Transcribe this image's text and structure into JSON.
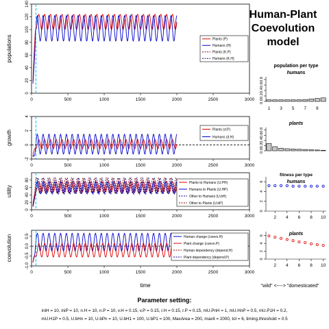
{
  "page": {
    "title_lines": [
      "Human-Plant",
      "Coevolution",
      "model"
    ],
    "x_axis_label": "time",
    "right_bottom_label": "\"wild\" <----> \"domesticated\""
  },
  "parameters": {
    "heading": "Parameter setting:",
    "line1": "iniH = 10, iniP = 10, n.H = 10, n.P = 10, v.H = 0.15, v.P = 0.15, r.H = 0.15, r.P = 0.15, mU.PnH = 1, mU.HnP = 0.5, mU.P1H = 0.2,",
    "line2": "mU.H1P = 0.5, U.bHn = 10, U.bPn = 10, U.bH1 = 100, U.bP1 = 100, MaxArea = 200, maxIt = 2000, tol = 6, timing.threshold = 0.5"
  },
  "colors": {
    "plants": "#dd0000",
    "humans": "#0000cc",
    "dark_red": "#8b0000",
    "navy": "#000080",
    "cyan": "#00bfff",
    "bar_fill": "#c8c8c8"
  },
  "chart_data": [
    {
      "id": "populations",
      "type": "line",
      "ylabel": "populations",
      "xlim": [
        0,
        3000
      ],
      "ylim": [
        0,
        140
      ],
      "xticks": [
        0,
        500,
        1000,
        1500,
        2000,
        2500,
        3000
      ],
      "yticks": [
        0,
        20,
        40,
        60,
        80,
        100,
        120,
        140
      ],
      "cyan_vline_x": 60,
      "legend": [
        "Plants (P)",
        "Humans (H)",
        "Plants (K.P)",
        "Humans (K.H)"
      ],
      "series": [
        {
          "name": "Plants (P)",
          "color": "plants",
          "dash": false,
          "base": 112,
          "amp": 12,
          "period": 80,
          "phase": 0,
          "t_end": 2000
        },
        {
          "name": "Humans (H)",
          "color": "humans",
          "dash": false,
          "base": 102,
          "amp": 20,
          "period": 80,
          "phase": 1.6,
          "t_end": 2000
        }
      ]
    },
    {
      "id": "growth",
      "type": "line",
      "ylabel": "growth",
      "xlim": [
        0,
        3000
      ],
      "ylim": [
        -2,
        4
      ],
      "xticks": [
        0,
        500,
        1000,
        1500,
        2000,
        2500,
        3000
      ],
      "yticks": [
        -2,
        0,
        2,
        4
      ],
      "zero_line": 0,
      "cyan_vline_x": 60,
      "legend": [
        "Plants (d.P)",
        "Humans (d.H)"
      ],
      "series": [
        {
          "name": "Plants (d.P)",
          "color": "plants",
          "dash": false,
          "base": 0.1,
          "amp": 0.65,
          "period": 80,
          "phase": 0,
          "t_end": 2000
        },
        {
          "name": "Humans (d.H)",
          "color": "humans",
          "dash": false,
          "base": 0.1,
          "amp": 1.4,
          "period": 80,
          "phase": 1.6,
          "t_end": 2000
        }
      ]
    },
    {
      "id": "utility",
      "type": "line",
      "ylabel": "utility",
      "xlim": [
        0,
        3000
      ],
      "ylim": [
        0,
        100
      ],
      "xticks": [
        0,
        500,
        1000,
        1500,
        2000,
        2500,
        3000
      ],
      "yticks": [
        0,
        20,
        40,
        60,
        80
      ],
      "cyan_vline_x": 60,
      "legend": [
        "Plants to Humans (U.PH)",
        "Humans to Plants (U.HP)",
        "Other to Humans (U.bH)",
        "Other to Plants (U.bP)"
      ],
      "series": [
        {
          "name": "Plants to Humans (U.PH)",
          "color": "plants",
          "dash": false,
          "base": 62,
          "amp": 14,
          "period": 80,
          "phase": 0,
          "t_end": 2000
        },
        {
          "name": "Humans to Plants (U.HP)",
          "color": "humans",
          "dash": false,
          "base": 60,
          "amp": 16,
          "period": 80,
          "phase": 1.6,
          "t_end": 2000
        },
        {
          "name": "Other to Humans (U.bH)",
          "color": "navy",
          "dash": true,
          "base": 64,
          "amp": 22,
          "period": 80,
          "phase": 0.8,
          "t_end": 2000
        },
        {
          "name": "Other to Plants (U.bP)",
          "color": "dark_red",
          "dash": true,
          "base": 66,
          "amp": 20,
          "period": 80,
          "phase": 2.4,
          "t_end": 2000
        }
      ]
    },
    {
      "id": "coevolution",
      "type": "line",
      "ylabel": "coevolution",
      "xlim": [
        0,
        3000
      ],
      "ylim": [
        -1,
        0.8
      ],
      "xticks": [
        0,
        500,
        1000,
        1500,
        2000,
        2500,
        3000
      ],
      "yticks": [
        -1.0,
        -0.5,
        0.0,
        0.5
      ],
      "zero_line": 0,
      "cyan_vline_x": 60,
      "legend": [
        "Human change (coevo.H)",
        "Plant change (coevo.P)",
        "Human dependency (depend.H)",
        "Plant dependency (depend.P)"
      ],
      "series": [
        {
          "name": "Human change (coevo.H)",
          "color": "humans",
          "dash": false,
          "base": 0.2,
          "amp": 0.45,
          "period": 80,
          "phase": 1.6,
          "t_end": 2000
        },
        {
          "name": "Plant change (coevo.P)",
          "color": "plants",
          "dash": false,
          "base": -0.2,
          "amp": 0.35,
          "period": 80,
          "phase": 0,
          "t_end": 2000
        }
      ]
    },
    {
      "id": "pop-per-type-humans",
      "type": "bar",
      "title": "population per type",
      "subtitle": "humans",
      "categories": [
        1,
        2,
        3,
        4,
        5,
        6,
        7,
        8,
        9,
        10
      ],
      "values": [
        0.06,
        0.06,
        0.06,
        0.06,
        0.06,
        0.06,
        0.07,
        0.09,
        0.11,
        0.13
      ],
      "xticks": [
        1,
        3,
        5,
        7,
        9
      ],
      "yticks": [
        0.0,
        0.2,
        0.4,
        0.6,
        0.8
      ],
      "ylim": [
        0,
        0.9
      ]
    },
    {
      "id": "pop-per-type-plants",
      "type": "bar",
      "subtitle": "plants",
      "categories": [
        1,
        2,
        3,
        4,
        5,
        6,
        7,
        8,
        9,
        10
      ],
      "values": [
        0.28,
        0.16,
        0.1,
        0.08,
        0.07,
        0.06,
        0.05,
        0.04,
        0.03,
        0.02
      ],
      "yticks": [
        0.0,
        0.2,
        0.4,
        0.6,
        0.8
      ],
      "ylim": [
        0,
        0.9
      ]
    },
    {
      "id": "fitness-per-type",
      "type": "scatter",
      "title": "fitness per type",
      "panels": [
        {
          "subtitle": "humans",
          "color": "humans",
          "x": [
            1,
            2,
            3,
            4,
            5,
            6,
            7,
            8,
            9,
            10
          ],
          "y": [
            5.2,
            5.2,
            5.2,
            5.2,
            5.1,
            5.1,
            5.1,
            5.1,
            5.1,
            5.1
          ]
        },
        {
          "subtitle": "plants",
          "color": "plants",
          "x": [
            1,
            2,
            3,
            4,
            5,
            6,
            7,
            8,
            9,
            10
          ],
          "y": [
            5.9,
            5.6,
            5.3,
            5.0,
            4.7,
            4.4,
            4.2,
            3.9,
            3.7,
            3.5
          ]
        }
      ],
      "xticks": [
        2,
        4,
        6,
        8,
        10
      ],
      "yticks": [
        0,
        2,
        4,
        6
      ],
      "ylim": [
        0,
        7
      ]
    }
  ]
}
